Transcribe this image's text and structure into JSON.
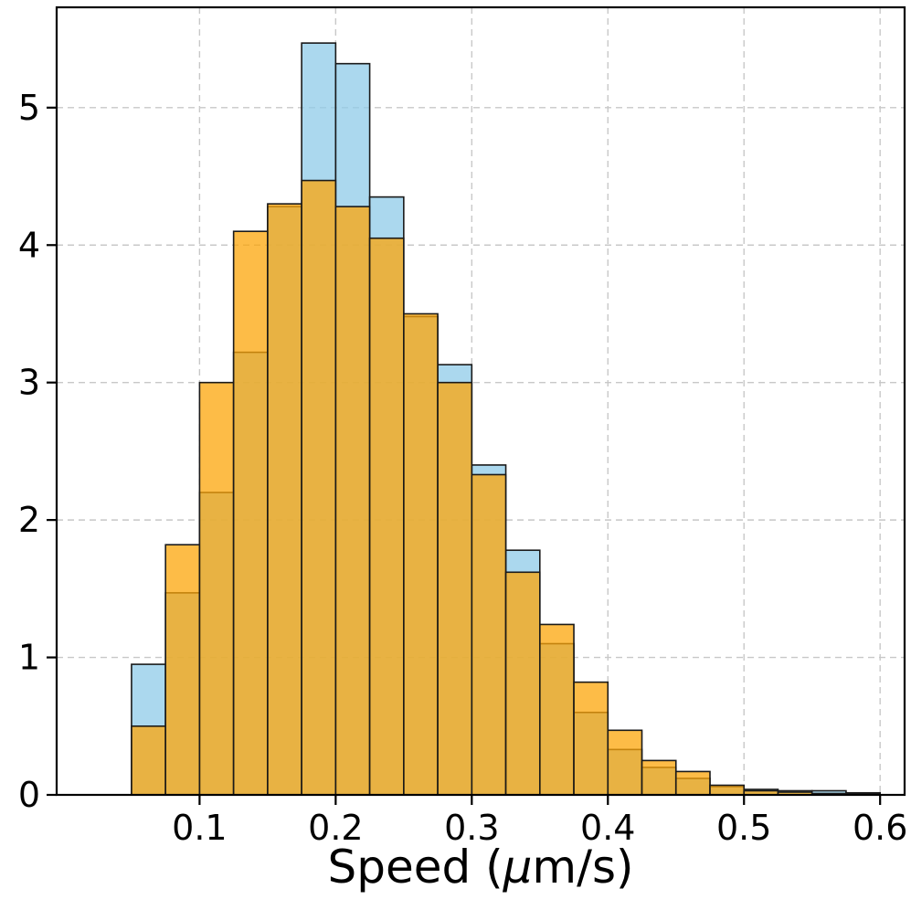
{
  "chart_data": {
    "type": "histogram",
    "title": "",
    "xlabel": "Speed (μm/s)",
    "ylabel": "",
    "grid": true,
    "legend": "none",
    "xlim": [
      -0.005,
      0.618
    ],
    "ylim": [
      0,
      5.73
    ],
    "xticks": [
      0.1,
      0.2,
      0.3,
      0.4,
      0.5,
      0.6
    ],
    "xtick_labels": [
      "0.1",
      "0.2",
      "0.3",
      "0.4",
      "0.5",
      "0.6"
    ],
    "yticks": [
      0,
      1,
      2,
      3,
      4,
      5
    ],
    "ytick_labels": [
      "0",
      "1",
      "2",
      "3",
      "4",
      "5"
    ],
    "bin_start": 0.05,
    "bin_width": 0.025,
    "series": [
      {
        "name": "blue-histogram",
        "color": "#8FCBE8",
        "alpha": 0.75,
        "edge_color": "#1a1a1a",
        "values": [
          0.95,
          1.47,
          2.2,
          3.22,
          4.28,
          5.47,
          5.32,
          4.35,
          3.48,
          3.13,
          2.4,
          1.78,
          1.1,
          0.6,
          0.33,
          0.2,
          0.12,
          0.06,
          0.04,
          0.03,
          0.03,
          0.015
        ]
      },
      {
        "name": "orange-histogram",
        "color": "#FCA50A",
        "alpha": 0.75,
        "edge_color": "#1a1a1a",
        "values": [
          0.5,
          1.82,
          3.0,
          4.1,
          4.3,
          4.47,
          4.28,
          4.05,
          3.5,
          3.0,
          2.33,
          1.62,
          1.24,
          0.82,
          0.47,
          0.25,
          0.17,
          0.07,
          0.03,
          0.02,
          0.01,
          0.01
        ]
      }
    ],
    "style": {
      "grid_color": "#c8c8c8",
      "spine_color": "#000000",
      "background": "#ffffff"
    }
  }
}
